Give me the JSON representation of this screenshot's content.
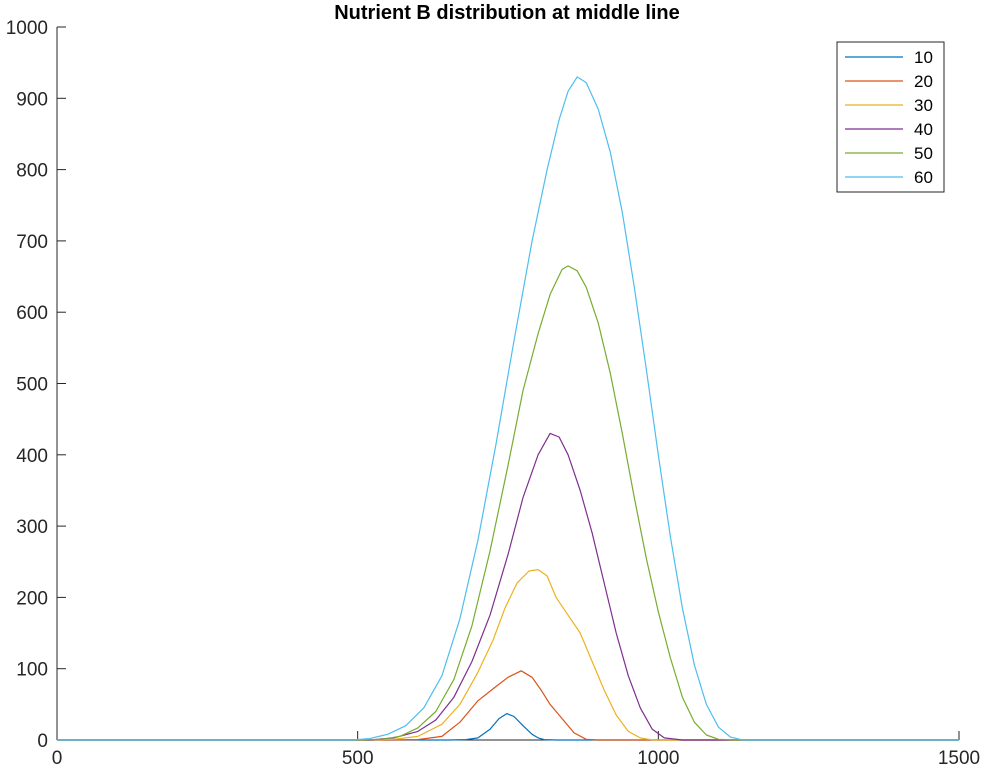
{
  "chart_data": {
    "type": "line",
    "title": "Nutrient B distribution at middle line",
    "xlabel": "",
    "ylabel": "",
    "xlim": [
      0,
      1500
    ],
    "ylim": [
      0,
      1000
    ],
    "xticks": [
      0,
      500,
      1000,
      1500
    ],
    "yticks": [
      0,
      100,
      200,
      300,
      400,
      500,
      600,
      700,
      800,
      900,
      1000
    ],
    "grid": false,
    "legend_position": "top-right",
    "series": [
      {
        "name": "10",
        "color": "#0072BD",
        "points": [
          [
            0,
            0
          ],
          [
            650,
            0
          ],
          [
            680,
            0.5
          ],
          [
            700,
            3
          ],
          [
            720,
            15
          ],
          [
            735,
            30
          ],
          [
            748,
            37
          ],
          [
            760,
            33
          ],
          [
            775,
            20
          ],
          [
            790,
            8
          ],
          [
            800,
            3
          ],
          [
            810,
            0.5
          ],
          [
            830,
            0
          ],
          [
            1500,
            0
          ]
        ]
      },
      {
        "name": "20",
        "color": "#D95319",
        "points": [
          [
            0,
            0
          ],
          [
            550,
            0
          ],
          [
            600,
            0.5
          ],
          [
            640,
            5
          ],
          [
            670,
            25
          ],
          [
            700,
            55
          ],
          [
            730,
            75
          ],
          [
            750,
            88
          ],
          [
            772,
            97
          ],
          [
            790,
            88
          ],
          [
            805,
            70
          ],
          [
            820,
            50
          ],
          [
            840,
            30
          ],
          [
            860,
            10
          ],
          [
            880,
            1
          ],
          [
            900,
            0
          ],
          [
            1500,
            0
          ]
        ]
      },
      {
        "name": "30",
        "color": "#EDB120",
        "points": [
          [
            0,
            0
          ],
          [
            520,
            0
          ],
          [
            560,
            1
          ],
          [
            600,
            5
          ],
          [
            640,
            22
          ],
          [
            670,
            50
          ],
          [
            700,
            95
          ],
          [
            725,
            140
          ],
          [
            745,
            185
          ],
          [
            765,
            220
          ],
          [
            785,
            237
          ],
          [
            800,
            239
          ],
          [
            815,
            230
          ],
          [
            830,
            200
          ],
          [
            850,
            175
          ],
          [
            870,
            150
          ],
          [
            890,
            110
          ],
          [
            910,
            70
          ],
          [
            930,
            35
          ],
          [
            950,
            12
          ],
          [
            970,
            3
          ],
          [
            990,
            0
          ],
          [
            1500,
            0
          ]
        ]
      },
      {
        "name": "40",
        "color": "#7E2F8E",
        "points": [
          [
            0,
            0
          ],
          [
            520,
            0
          ],
          [
            560,
            3
          ],
          [
            600,
            12
          ],
          [
            630,
            28
          ],
          [
            660,
            60
          ],
          [
            690,
            110
          ],
          [
            720,
            175
          ],
          [
            750,
            260
          ],
          [
            775,
            340
          ],
          [
            800,
            400
          ],
          [
            820,
            430
          ],
          [
            835,
            425
          ],
          [
            850,
            400
          ],
          [
            870,
            350
          ],
          [
            890,
            290
          ],
          [
            910,
            220
          ],
          [
            930,
            150
          ],
          [
            950,
            90
          ],
          [
            970,
            45
          ],
          [
            990,
            15
          ],
          [
            1010,
            3
          ],
          [
            1040,
            0
          ],
          [
            1500,
            0
          ]
        ]
      },
      {
        "name": "50",
        "color": "#77AC30",
        "points": [
          [
            0,
            0
          ],
          [
            500,
            0
          ],
          [
            540,
            1
          ],
          [
            570,
            5
          ],
          [
            600,
            17
          ],
          [
            630,
            40
          ],
          [
            660,
            85
          ],
          [
            690,
            160
          ],
          [
            720,
            265
          ],
          [
            750,
            385
          ],
          [
            775,
            490
          ],
          [
            800,
            570
          ],
          [
            820,
            625
          ],
          [
            840,
            660
          ],
          [
            850,
            665
          ],
          [
            865,
            658
          ],
          [
            880,
            635
          ],
          [
            900,
            585
          ],
          [
            920,
            515
          ],
          [
            940,
            430
          ],
          [
            960,
            340
          ],
          [
            980,
            255
          ],
          [
            1000,
            180
          ],
          [
            1020,
            115
          ],
          [
            1040,
            60
          ],
          [
            1060,
            25
          ],
          [
            1080,
            7
          ],
          [
            1100,
            1
          ],
          [
            1130,
            0
          ],
          [
            1500,
            0
          ]
        ]
      },
      {
        "name": "60",
        "color": "#4DBEEE",
        "points": [
          [
            0,
            0
          ],
          [
            490,
            0
          ],
          [
            520,
            2
          ],
          [
            550,
            8
          ],
          [
            580,
            20
          ],
          [
            610,
            45
          ],
          [
            640,
            90
          ],
          [
            670,
            170
          ],
          [
            700,
            280
          ],
          [
            730,
            415
          ],
          [
            760,
            560
          ],
          [
            790,
            700
          ],
          [
            815,
            800
          ],
          [
            835,
            870
          ],
          [
            850,
            910
          ],
          [
            865,
            930
          ],
          [
            880,
            922
          ],
          [
            900,
            885
          ],
          [
            920,
            825
          ],
          [
            940,
            740
          ],
          [
            960,
            635
          ],
          [
            980,
            520
          ],
          [
            1000,
            400
          ],
          [
            1020,
            285
          ],
          [
            1040,
            185
          ],
          [
            1060,
            105
          ],
          [
            1080,
            50
          ],
          [
            1100,
            18
          ],
          [
            1120,
            4
          ],
          [
            1140,
            0
          ],
          [
            1500,
            0
          ]
        ]
      }
    ]
  }
}
